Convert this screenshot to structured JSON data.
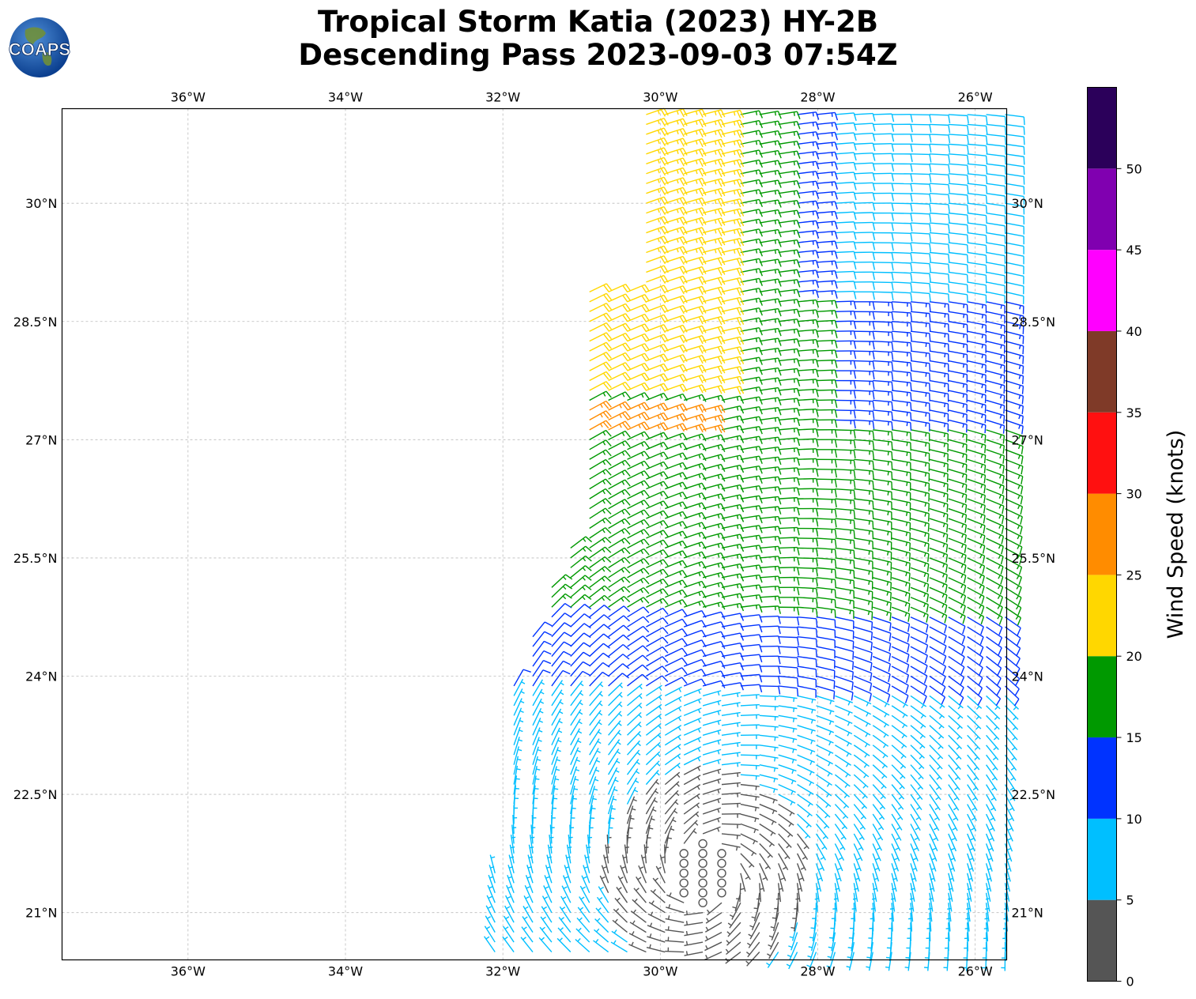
{
  "title": {
    "line1": "Tropical Storm Katia (2023) HY-2B",
    "line2": "Descending Pass 2023-09-03 07:54Z"
  },
  "logo": {
    "text": "COAPS",
    "icon": "globe-logo-icon"
  },
  "map": {
    "lon_range": [
      -37.6,
      -25.6
    ],
    "lat_range": [
      20.4,
      31.2
    ],
    "lon_ticks": [
      {
        "value": -36,
        "label": "36°W"
      },
      {
        "value": -34,
        "label": "34°W"
      },
      {
        "value": -32,
        "label": "32°W"
      },
      {
        "value": -30,
        "label": "30°W"
      },
      {
        "value": -28,
        "label": "28°W"
      },
      {
        "value": -26,
        "label": "26°W"
      }
    ],
    "lat_ticks": [
      {
        "value": 21,
        "label": "21°N"
      },
      {
        "value": 22.5,
        "label": "22.5°N"
      },
      {
        "value": 24,
        "label": "24°N"
      },
      {
        "value": 25.5,
        "label": "25.5°N"
      },
      {
        "value": 27,
        "label": "27°N"
      },
      {
        "value": 28.5,
        "label": "28.5°N"
      },
      {
        "value": 30,
        "label": "30°N"
      }
    ],
    "storm_center": {
      "lon": -29.4,
      "lat": 21.5
    },
    "grid": true
  },
  "colorbar": {
    "label": "Wind Speed (knots)",
    "ticks": [
      "0",
      "5",
      "10",
      "15",
      "20",
      "25",
      "30",
      "35",
      "40",
      "45",
      "50"
    ],
    "tick_values": [
      0,
      5,
      10,
      15,
      20,
      25,
      30,
      35,
      40,
      45,
      50
    ],
    "max": 55,
    "bins": [
      {
        "min": 0,
        "max": 5,
        "color": "#555555"
      },
      {
        "min": 5,
        "max": 10,
        "color": "#00bfff"
      },
      {
        "min": 10,
        "max": 15,
        "color": "#0033ff"
      },
      {
        "min": 15,
        "max": 20,
        "color": "#009900"
      },
      {
        "min": 20,
        "max": 25,
        "color": "#ffd700"
      },
      {
        "min": 25,
        "max": 30,
        "color": "#ff8c00"
      },
      {
        "min": 30,
        "max": 35,
        "color": "#ff1010"
      },
      {
        "min": 35,
        "max": 40,
        "color": "#7f3a28"
      },
      {
        "min": 40,
        "max": 45,
        "color": "#ff00ff"
      },
      {
        "min": 45,
        "max": 50,
        "color": "#8000b0"
      },
      {
        "min": 50,
        "max": 55,
        "color": "#2b005a"
      }
    ]
  }
}
